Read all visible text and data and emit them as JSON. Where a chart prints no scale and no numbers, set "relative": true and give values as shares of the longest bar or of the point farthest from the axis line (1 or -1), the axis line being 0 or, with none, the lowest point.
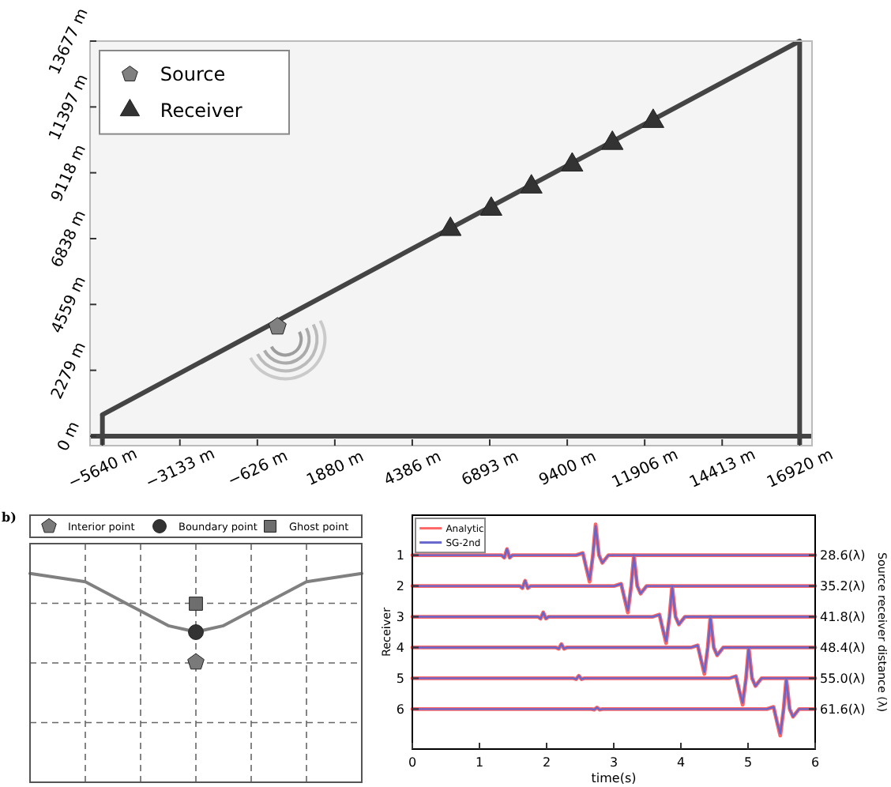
{
  "chart_data": [
    {
      "type": "scatter",
      "xlim": [
        -6040,
        17320
      ],
      "ylim": [
        -330,
        13677
      ],
      "xticks": [
        {
          "value": -5640,
          "label": "−5640 m"
        },
        {
          "value": -3133,
          "label": "−3133 m"
        },
        {
          "value": -626,
          "label": "−626 m"
        },
        {
          "value": 1880,
          "label": "1880 m"
        },
        {
          "value": 4386,
          "label": "4386 m"
        },
        {
          "value": 6893,
          "label": "6893 m"
        },
        {
          "value": 9400,
          "label": "9400 m"
        },
        {
          "value": 11906,
          "label": "11906 m"
        },
        {
          "value": 14413,
          "label": "14413 m"
        },
        {
          "value": 16920,
          "label": "16920 m"
        }
      ],
      "yticks": [
        {
          "value": 0,
          "label": "0 m"
        },
        {
          "value": 2279,
          "label": "2279 m"
        },
        {
          "value": 4559,
          "label": "4559 m"
        },
        {
          "value": 6838,
          "label": "6838 m"
        },
        {
          "value": 9118,
          "label": "9118 m"
        },
        {
          "value": 11397,
          "label": "11397 m"
        },
        {
          "value": 13677,
          "label": "13677 m"
        }
      ],
      "legend": "top left",
      "ref_lines": [
        {
          "axis": "y",
          "value": 0,
          "color": "#444444"
        },
        {
          "axis": "x",
          "value": 16920,
          "color": "#444444"
        }
      ],
      "series": [
        {
          "type": "line",
          "color": "#444444",
          "x": [
            -5640,
            16920
          ],
          "values": [
            740,
            13677
          ]
        },
        {
          "name": "Source",
          "color": "#808080",
          "x": [
            25
          ],
          "values": [
            3790
          ]
        },
        {
          "name": "Receiver",
          "color": "#333333",
          "marker": "triangle",
          "x": [
            5620,
            6940,
            8240,
            9560,
            10860,
            12180
          ],
          "values": [
            7160,
            7860,
            8630,
            9390,
            10140,
            10900
          ]
        }
      ]
    },
    {
      "type": "line",
      "relative": true,
      "categories": [
        null,
        null,
        null,
        null,
        null,
        null,
        null,
        null,
        null,
        null,
        null,
        null,
        null
      ],
      "grid": true,
      "annotations": [
        "b)",
        "Interior point",
        "Boundary point",
        "Ghost point"
      ],
      "series": [
        {
          "color": "#808080",
          "values": [
            1,
            0.98,
            0.96,
            0.89,
            0.82,
            0.75,
            0.72,
            0.75,
            0.82,
            0.89,
            0.96,
            0.98,
            1
          ]
        }
      ]
    },
    {
      "type": "line",
      "xlim": [
        0,
        6
      ],
      "xticks": [
        0,
        1,
        2,
        3,
        4,
        5,
        6
      ],
      "ylim": [
        7.3,
        -0.3
      ],
      "yticks": [
        1,
        2,
        3,
        4,
        5,
        6
      ],
      "y2lim": [
        70.18,
        20.02
      ],
      "y2ticks": [
        {
          "value": 28.6,
          "label": "28.6(λ)"
        },
        {
          "value": 35.2,
          "label": "35.2(λ)"
        },
        {
          "value": 41.8,
          "label": "41.8(λ)"
        },
        {
          "value": 48.4,
          "label": "48.4(λ)"
        },
        {
          "value": 55,
          "label": "55.0(λ)"
        },
        {
          "value": 61.6,
          "label": "61.6(λ)"
        }
      ],
      "xlabel": "time(s)",
      "ylabel": "Receiver",
      "y2label": "Source receiver distance (λ)",
      "legend": "top left",
      "series": [
        {
          "name": "Analytic",
          "color": "#ff6666",
          "x": [
            0,
            1.33,
            1.37,
            1.41,
            1.45,
            1.49,
            2.44,
            2.54,
            2.59,
            2.64,
            2.69,
            2.73,
            2.78,
            2.83,
            2.92,
            6
          ],
          "values": [
            1,
            1,
            1.08,
            0.8,
            1.08,
            1,
            1,
            0.93,
            1.4,
            1.86,
            1,
            0,
            1,
            1.25,
            1,
            1
          ]
        },
        {
          "color": "#ff6666",
          "x": [
            0,
            1.6,
            1.64,
            1.68,
            1.72,
            1.76,
            3.01,
            3.11,
            3.16,
            3.21,
            3.26,
            3.3,
            3.35,
            3.4,
            3.49,
            6
          ],
          "values": [
            2,
            2,
            2.07,
            1.83,
            2.07,
            2,
            2,
            1.93,
            2.4,
            2.86,
            2,
            1,
            2,
            2.25,
            2,
            2
          ]
        },
        {
          "color": "#ff6666",
          "x": [
            0,
            1.87,
            1.91,
            1.95,
            1.99,
            2.03,
            3.58,
            3.68,
            3.73,
            3.78,
            3.83,
            3.87,
            3.92,
            3.97,
            4.06,
            6
          ],
          "values": [
            3,
            3,
            3.06,
            2.86,
            3.06,
            3,
            3,
            2.93,
            3.4,
            3.86,
            3,
            2,
            3,
            3.25,
            3,
            3
          ]
        },
        {
          "color": "#ff6666",
          "x": [
            0,
            2.14,
            2.18,
            2.22,
            2.26,
            2.3,
            4.15,
            4.25,
            4.3,
            4.35,
            4.4,
            4.44,
            4.49,
            4.54,
            4.63,
            6
          ],
          "values": [
            4,
            4,
            4.04,
            3.89,
            4.04,
            4,
            4,
            3.93,
            4.4,
            4.86,
            4,
            3,
            4,
            4.25,
            4,
            4
          ]
        },
        {
          "color": "#ff6666",
          "x": [
            0,
            2.4,
            2.44,
            2.48,
            2.52,
            2.56,
            4.72,
            4.82,
            4.87,
            4.92,
            4.97,
            5.01,
            5.06,
            5.11,
            5.2,
            6
          ],
          "values": [
            5,
            5,
            5.03,
            4.92,
            5.03,
            5,
            5,
            4.93,
            5.4,
            5.86,
            5,
            4,
            5,
            5.25,
            5,
            5
          ]
        },
        {
          "color": "#ff6666",
          "x": [
            0,
            2.67,
            2.71,
            2.75,
            2.79,
            2.83,
            5.28,
            5.38,
            5.43,
            5.48,
            5.53,
            5.57,
            5.62,
            5.67,
            5.76,
            6
          ],
          "values": [
            6,
            6,
            6.02,
            5.95,
            6.02,
            6,
            6,
            5.93,
            6.4,
            6.86,
            6,
            5,
            6,
            6.25,
            6,
            6
          ]
        },
        {
          "name": "SG-2nd",
          "color": "#6666cc",
          "x": [
            0,
            1.33,
            1.37,
            1.41,
            1.45,
            1.49,
            2.44,
            2.54,
            2.59,
            2.64,
            2.69,
            2.73,
            2.78,
            2.83,
            2.92,
            6
          ],
          "values": [
            1,
            1,
            1.08,
            0.8,
            1.08,
            1,
            1,
            0.93,
            1.4,
            1.8,
            1,
            0.05,
            1,
            1.25,
            1,
            1
          ]
        },
        {
          "color": "#6666cc",
          "x": [
            0,
            1.6,
            1.64,
            1.68,
            1.72,
            1.76,
            3.01,
            3.11,
            3.16,
            3.21,
            3.26,
            3.3,
            3.35,
            3.4,
            3.49,
            6
          ],
          "values": [
            2,
            2,
            2.07,
            1.83,
            2.07,
            2,
            2,
            1.93,
            2.4,
            2.8,
            2,
            1.05,
            2,
            2.25,
            2,
            2
          ]
        },
        {
          "color": "#6666cc",
          "x": [
            0,
            1.87,
            1.91,
            1.95,
            1.99,
            2.03,
            3.58,
            3.68,
            3.73,
            3.78,
            3.83,
            3.87,
            3.92,
            3.97,
            4.06,
            6
          ],
          "values": [
            3,
            3,
            3.06,
            2.86,
            3.06,
            3,
            3,
            2.93,
            3.4,
            3.8,
            3,
            2.05,
            3,
            3.25,
            3,
            3
          ]
        },
        {
          "color": "#6666cc",
          "x": [
            0,
            2.14,
            2.18,
            2.22,
            2.26,
            2.3,
            4.15,
            4.25,
            4.3,
            4.35,
            4.4,
            4.44,
            4.49,
            4.54,
            4.63,
            6
          ],
          "values": [
            4,
            4,
            4.04,
            3.89,
            4.04,
            4,
            4,
            3.93,
            4.4,
            4.8,
            4,
            3.05,
            4,
            4.25,
            4,
            4
          ]
        },
        {
          "color": "#6666cc",
          "x": [
            0,
            2.4,
            2.44,
            2.48,
            2.52,
            2.56,
            4.72,
            4.82,
            4.87,
            4.92,
            4.97,
            5.01,
            5.06,
            5.11,
            5.2,
            6
          ],
          "values": [
            5,
            5,
            5.03,
            4.92,
            5.03,
            5,
            5,
            4.93,
            5.4,
            5.8,
            5,
            4.05,
            5,
            5.25,
            5,
            5
          ]
        },
        {
          "color": "#6666cc",
          "x": [
            0,
            2.67,
            2.71,
            2.75,
            2.79,
            2.83,
            5.28,
            5.38,
            5.43,
            5.48,
            5.53,
            5.57,
            5.62,
            5.67,
            5.76,
            6
          ],
          "values": [
            6,
            6,
            6.02,
            5.95,
            6.02,
            6,
            6,
            5.93,
            6.4,
            6.8,
            6,
            5.05,
            6,
            6.25,
            6,
            6
          ]
        }
      ]
    }
  ]
}
